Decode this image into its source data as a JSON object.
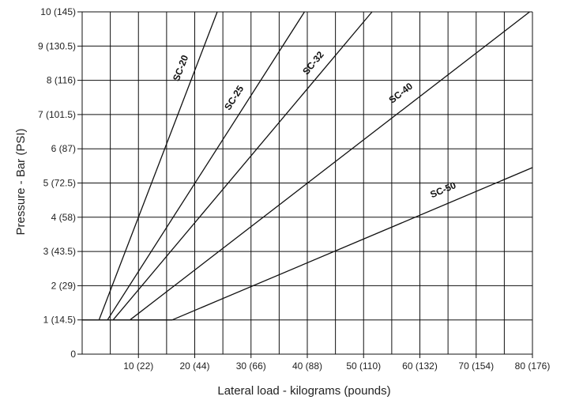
{
  "chart_data": {
    "type": "line",
    "title": "",
    "xlabel": "Lateral load - kilograms (pounds)",
    "ylabel": "Pressure - Bar (PSI)",
    "xlim": [
      0,
      80
    ],
    "ylim": [
      0,
      10
    ],
    "grid": true,
    "x_minor_step": 5,
    "y_major_step": 1,
    "x_tick_labels": [
      {
        "x": 10,
        "label": "10 (22)"
      },
      {
        "x": 20,
        "label": "20 (44)"
      },
      {
        "x": 30,
        "label": "30 (66)"
      },
      {
        "x": 40,
        "label": "40 (88)"
      },
      {
        "x": 50,
        "label": "50 (110)"
      },
      {
        "x": 60,
        "label": "60 (132)"
      },
      {
        "x": 70,
        "label": "70 (154)"
      },
      {
        "x": 80,
        "label": "80 (176)"
      }
    ],
    "y_tick_labels": [
      {
        "y": 0,
        "label": "0"
      },
      {
        "y": 1,
        "label": "1 (14.5)"
      },
      {
        "y": 2,
        "label": "2 (29)"
      },
      {
        "y": 3,
        "label": "3 (43.5)"
      },
      {
        "y": 4,
        "label": "4 (58)"
      },
      {
        "y": 5,
        "label": "5 (72.5)"
      },
      {
        "y": 6,
        "label": "6 (87)"
      },
      {
        "y": 7,
        "label": "7 (101.5)"
      },
      {
        "y": 8,
        "label": "8 (116)"
      },
      {
        "y": 9,
        "label": "9 (130.5)"
      },
      {
        "y": 10,
        "label": "10 (145)"
      }
    ],
    "series": [
      {
        "name": "SC-20",
        "points": [
          [
            3,
            1
          ],
          [
            24,
            10
          ]
        ],
        "label_at": [
          18.4,
          8.3
        ]
      },
      {
        "name": "SC-25",
        "points": [
          [
            4.5,
            1
          ],
          [
            39.5,
            10
          ]
        ],
        "label_at": [
          27.8,
          7.4
        ]
      },
      {
        "name": "SC-32",
        "points": [
          [
            5.5,
            1
          ],
          [
            51.5,
            10
          ]
        ],
        "label_at": [
          41.8,
          8.4
        ]
      },
      {
        "name": "SC-40",
        "points": [
          [
            8.5,
            1
          ],
          [
            79.5,
            10
          ]
        ],
        "label_at": [
          57.2,
          7.5
        ]
      },
      {
        "name": "SC-50",
        "points": [
          [
            16,
            1
          ],
          [
            80,
            5.45
          ]
        ],
        "label_at": [
          64.5,
          4.65
        ]
      }
    ],
    "baseline": {
      "y": 1,
      "x_start": 0,
      "x_end": 16
    }
  }
}
